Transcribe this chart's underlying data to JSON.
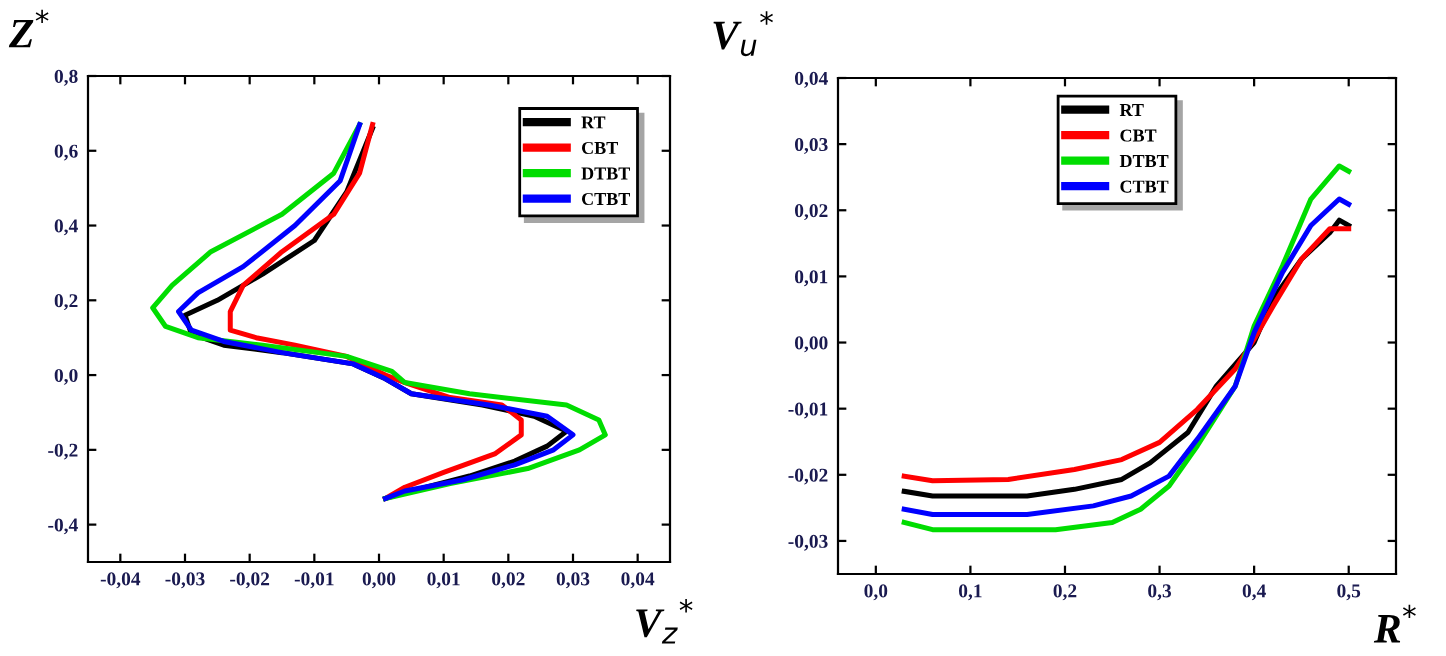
{
  "chart_data": [
    {
      "type": "line",
      "xlabel": "V$_{z}$$^{*}$",
      "ylabel": "Z$^{*}$",
      "legend": "top right",
      "grid": false,
      "xlim": [
        -0.045,
        0.045
      ],
      "ylim": [
        -0.5,
        0.8
      ],
      "xticks": [
        {
          "value": -0.04,
          "label": "-0,04"
        },
        {
          "value": -0.03,
          "label": "-0,03"
        },
        {
          "value": -0.02,
          "label": "-0,02"
        },
        {
          "value": -0.01,
          "label": "-0,01"
        },
        {
          "value": 0.0,
          "label": "0,00"
        },
        {
          "value": 0.01,
          "label": "0,01"
        },
        {
          "value": 0.02,
          "label": "0,02"
        },
        {
          "value": 0.03,
          "label": "0,03"
        },
        {
          "value": 0.04,
          "label": "0,04"
        }
      ],
      "yticks": [
        {
          "value": -0.4,
          "label": "-0,4"
        },
        {
          "value": -0.2,
          "label": "-0,2"
        },
        {
          "value": 0.0,
          "label": "0,0"
        },
        {
          "value": 0.2,
          "label": "0,2"
        },
        {
          "value": 0.4,
          "label": "0,4"
        },
        {
          "value": 0.6,
          "label": "0,6"
        },
        {
          "value": 0.8,
          "label": "0,8"
        }
      ],
      "series": [
        {
          "name": "RT",
          "color": "#000000",
          "x": [
            -0.001,
            -0.005,
            -0.01,
            -0.018,
            -0.025,
            -0.03,
            -0.029,
            -0.024,
            -0.015,
            -0.004,
            0.001,
            0.005,
            0.016,
            0.024,
            0.029,
            0.026,
            0.021,
            0.014,
            0.005,
            0.001
          ],
          "values": [
            0.66,
            0.49,
            0.36,
            0.27,
            0.2,
            0.16,
            0.11,
            0.08,
            0.06,
            0.03,
            -0.01,
            -0.05,
            -0.08,
            -0.11,
            -0.15,
            -0.19,
            -0.23,
            -0.27,
            -0.31,
            -0.33
          ]
        },
        {
          "name": "CBT",
          "color": "#ff0000",
          "x": [
            -0.001,
            -0.003,
            -0.007,
            -0.015,
            -0.021,
            -0.023,
            -0.023,
            -0.019,
            -0.013,
            -0.005,
            0.001,
            0.004,
            0.011,
            0.019,
            0.022,
            0.022,
            0.018,
            0.01,
            0.004,
            0.001
          ],
          "values": [
            0.67,
            0.54,
            0.43,
            0.33,
            0.24,
            0.17,
            0.12,
            0.1,
            0.08,
            0.05,
            0.0,
            -0.02,
            -0.06,
            -0.08,
            -0.12,
            -0.16,
            -0.21,
            -0.26,
            -0.3,
            -0.33
          ]
        },
        {
          "name": "DTBT",
          "color": "#00dd00",
          "x": [
            -0.003,
            -0.007,
            -0.015,
            -0.026,
            -0.032,
            -0.035,
            -0.033,
            -0.028,
            -0.018,
            -0.005,
            0.002,
            0.004,
            0.014,
            0.029,
            0.034,
            0.035,
            0.031,
            0.023,
            0.011,
            0.001
          ],
          "values": [
            0.67,
            0.54,
            0.43,
            0.33,
            0.24,
            0.18,
            0.13,
            0.1,
            0.08,
            0.05,
            0.01,
            -0.02,
            -0.05,
            -0.08,
            -0.12,
            -0.16,
            -0.2,
            -0.25,
            -0.29,
            -0.33
          ]
        },
        {
          "name": "CTBT",
          "color": "#0000ff",
          "x": [
            -0.003,
            -0.006,
            -0.013,
            -0.021,
            -0.028,
            -0.031,
            -0.029,
            -0.024,
            -0.015,
            -0.004,
            0.001,
            0.005,
            0.017,
            0.026,
            0.03,
            0.027,
            0.021,
            0.013,
            0.004,
            0.001
          ],
          "values": [
            0.67,
            0.52,
            0.4,
            0.29,
            0.22,
            0.17,
            0.12,
            0.09,
            0.06,
            0.03,
            -0.01,
            -0.05,
            -0.08,
            -0.11,
            -0.16,
            -0.2,
            -0.24,
            -0.28,
            -0.31,
            -0.33
          ]
        }
      ]
    },
    {
      "type": "line",
      "xlabel": "R$^{*}$",
      "ylabel": "V$_{u}$$^{*}$",
      "legend": "top",
      "grid": false,
      "xlim": [
        -0.04,
        0.55
      ],
      "ylim": [
        -0.035,
        0.04
      ],
      "xticks": [
        {
          "value": 0.0,
          "label": "0,0"
        },
        {
          "value": 0.1,
          "label": "0,1"
        },
        {
          "value": 0.2,
          "label": "0,2"
        },
        {
          "value": 0.3,
          "label": "0,3"
        },
        {
          "value": 0.4,
          "label": "0,4"
        },
        {
          "value": 0.5,
          "label": "0,5"
        }
      ],
      "yticks": [
        {
          "value": -0.03,
          "label": "-0,03"
        },
        {
          "value": -0.02,
          "label": "-0,02"
        },
        {
          "value": -0.01,
          "label": "-0,01"
        },
        {
          "value": 0.0,
          "label": "0,00"
        },
        {
          "value": 0.01,
          "label": "0,01"
        },
        {
          "value": 0.02,
          "label": "0,02"
        },
        {
          "value": 0.03,
          "label": "0,03"
        },
        {
          "value": 0.04,
          "label": "0,04"
        }
      ],
      "series": [
        {
          "name": "RT",
          "color": "#000000",
          "x": [
            0.03,
            0.06,
            0.16,
            0.21,
            0.26,
            0.29,
            0.33,
            0.36,
            0.4,
            0.42,
            0.45,
            0.48,
            0.49,
            0.5
          ],
          "values": [
            -0.0225,
            -0.0232,
            -0.0232,
            -0.0222,
            -0.0207,
            -0.0182,
            -0.0136,
            -0.0066,
            0.0,
            0.0066,
            0.0126,
            0.0166,
            0.0185,
            0.0177
          ]
        },
        {
          "name": "CBT",
          "color": "#ff0000",
          "x": [
            0.03,
            0.06,
            0.14,
            0.21,
            0.26,
            0.3,
            0.34,
            0.38,
            0.4,
            0.42,
            0.45,
            0.48,
            0.5
          ],
          "values": [
            -0.0202,
            -0.0209,
            -0.0207,
            -0.0192,
            -0.0177,
            -0.0151,
            -0.0101,
            -0.004,
            0.0005,
            0.0055,
            0.0126,
            0.0172,
            0.0172
          ]
        },
        {
          "name": "DTBT",
          "color": "#00dd00",
          "x": [
            0.03,
            0.06,
            0.19,
            0.25,
            0.28,
            0.31,
            0.34,
            0.38,
            0.4,
            0.43,
            0.46,
            0.49,
            0.5
          ],
          "values": [
            -0.0272,
            -0.0283,
            -0.0283,
            -0.0272,
            -0.0252,
            -0.0217,
            -0.0156,
            -0.0066,
            0.0025,
            0.0116,
            0.0217,
            0.0267,
            0.0259
          ]
        },
        {
          "name": "CTBT",
          "color": "#0000ff",
          "x": [
            0.03,
            0.06,
            0.16,
            0.23,
            0.27,
            0.31,
            0.34,
            0.38,
            0.4,
            0.43,
            0.46,
            0.49,
            0.5
          ],
          "values": [
            -0.0252,
            -0.026,
            -0.026,
            -0.0247,
            -0.0232,
            -0.0202,
            -0.0146,
            -0.0066,
            0.0015,
            0.0106,
            0.0177,
            0.0217,
            0.0209
          ]
        }
      ]
    }
  ]
}
